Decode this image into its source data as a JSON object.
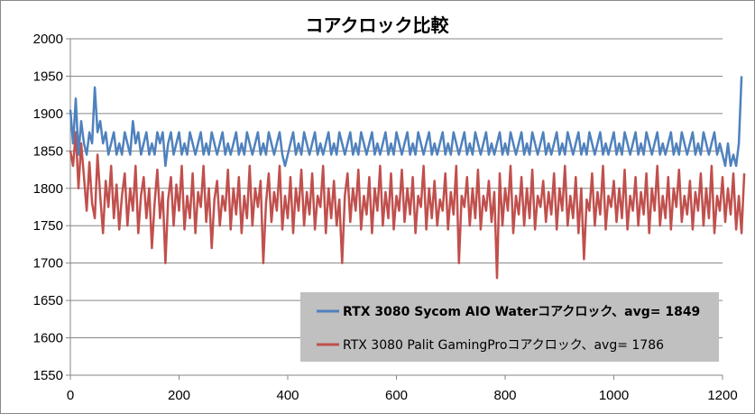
{
  "chart_data": {
    "type": "line",
    "title": "コアクロック比較",
    "xlabel": "",
    "ylabel": "",
    "xlim": [
      0,
      1200
    ],
    "ylim": [
      1550,
      2000
    ],
    "x_ticks": [
      0,
      200,
      400,
      600,
      800,
      1000,
      1200
    ],
    "y_ticks": [
      1550,
      1600,
      1650,
      1700,
      1750,
      1800,
      1850,
      1900,
      1950,
      2000
    ],
    "grid": "horizontal",
    "legend_position": "bottom-right",
    "series": [
      {
        "name": "RTX 3080 Sycom AIO Waterコアクロック、avg= 1849",
        "color": "#4f81bd",
        "avg": 1849,
        "sample_step": 5,
        "values": [
          1905,
          1860,
          1920,
          1845,
          1890,
          1860,
          1845,
          1875,
          1860,
          1935,
          1875,
          1890,
          1860,
          1875,
          1845,
          1860,
          1875,
          1845,
          1860,
          1845,
          1875,
          1860,
          1845,
          1890,
          1860,
          1875,
          1845,
          1860,
          1875,
          1845,
          1860,
          1845,
          1875,
          1860,
          1875,
          1830,
          1860,
          1875,
          1845,
          1860,
          1875,
          1845,
          1860,
          1845,
          1875,
          1860,
          1845,
          1860,
          1875,
          1845,
          1860,
          1845,
          1875,
          1860,
          1845,
          1860,
          1875,
          1845,
          1860,
          1845,
          1860,
          1875,
          1845,
          1860,
          1845,
          1875,
          1860,
          1845,
          1860,
          1875,
          1845,
          1860,
          1845,
          1875,
          1860,
          1845,
          1860,
          1875,
          1845,
          1830,
          1845,
          1860,
          1875,
          1845,
          1860,
          1845,
          1875,
          1860,
          1845,
          1860,
          1875,
          1845,
          1860,
          1845,
          1860,
          1875,
          1845,
          1860,
          1845,
          1875,
          1860,
          1845,
          1860,
          1875,
          1845,
          1860,
          1845,
          1875,
          1860,
          1845,
          1860,
          1875,
          1845,
          1860,
          1845,
          1860,
          1875,
          1845,
          1860,
          1845,
          1875,
          1860,
          1845,
          1860,
          1875,
          1845,
          1860,
          1845,
          1875,
          1860,
          1845,
          1860,
          1875,
          1845,
          1860,
          1845,
          1860,
          1875,
          1845,
          1860,
          1845,
          1875,
          1860,
          1845,
          1860,
          1875,
          1845,
          1860,
          1845,
          1875,
          1860,
          1845,
          1860,
          1875,
          1845,
          1860,
          1845,
          1860,
          1875,
          1845,
          1860,
          1845,
          1875,
          1860,
          1845,
          1860,
          1875,
          1845,
          1860,
          1845,
          1875,
          1860,
          1845,
          1860,
          1875,
          1845,
          1860,
          1845,
          1860,
          1875,
          1845,
          1860,
          1845,
          1875,
          1860,
          1845,
          1860,
          1875,
          1845,
          1860,
          1845,
          1875,
          1860,
          1845,
          1860,
          1875,
          1845,
          1860,
          1845,
          1860,
          1875,
          1845,
          1860,
          1845,
          1875,
          1860,
          1845,
          1860,
          1875,
          1845,
          1860,
          1845,
          1875,
          1860,
          1845,
          1860,
          1875,
          1845,
          1860,
          1845,
          1860,
          1875,
          1845,
          1860,
          1845,
          1875,
          1860,
          1845,
          1860,
          1875,
          1845,
          1860,
          1845,
          1875,
          1860,
          1845,
          1860,
          1875,
          1845,
          1860,
          1845,
          1830,
          1860,
          1830,
          1845,
          1830,
          1860,
          1950
        ]
      },
      {
        "name": "RTX 3080 Palit GamingProコアクロック、avg= 1786",
        "color": "#c0504d",
        "avg": 1786,
        "sample_step": 5,
        "values": [
          1850,
          1830,
          1875,
          1800,
          1860,
          1815,
          1770,
          1835,
          1780,
          1760,
          1845,
          1790,
          1740,
          1810,
          1775,
          1830,
          1760,
          1805,
          1745,
          1790,
          1820,
          1750,
          1800,
          1770,
          1830,
          1740,
          1790,
          1815,
          1760,
          1800,
          1720,
          1780,
          1825,
          1760,
          1795,
          1700,
          1785,
          1815,
          1750,
          1805,
          1770,
          1830,
          1745,
          1790,
          1760,
          1820,
          1740,
          1795,
          1775,
          1830,
          1755,
          1800,
          1720,
          1785,
          1810,
          1750,
          1790,
          1770,
          1825,
          1745,
          1800,
          1765,
          1815,
          1740,
          1790,
          1760,
          1830,
          1750,
          1800,
          1775,
          1810,
          1700,
          1780,
          1820,
          1755,
          1795,
          1770,
          1830,
          1745,
          1790,
          1760,
          1815,
          1740,
          1800,
          1770,
          1825,
          1750,
          1795,
          1765,
          1820,
          1745,
          1790,
          1775,
          1830,
          1740,
          1800,
          1760,
          1810,
          1750,
          1785,
          1700,
          1790,
          1820,
          1755,
          1800,
          1770,
          1825,
          1745,
          1790,
          1765,
          1815,
          1740,
          1800,
          1770,
          1830,
          1750,
          1795,
          1760,
          1820,
          1745,
          1790,
          1770,
          1825,
          1755,
          1800,
          1765,
          1815,
          1740,
          1790,
          1775,
          1830,
          1745,
          1800,
          1760,
          1810,
          1750,
          1785,
          1770,
          1820,
          1745,
          1795,
          1765,
          1830,
          1700,
          1790,
          1775,
          1815,
          1750,
          1800,
          1760,
          1825,
          1745,
          1790,
          1770,
          1810,
          1755,
          1795,
          1680,
          1820,
          1750,
          1800,
          1770,
          1830,
          1740,
          1790,
          1765,
          1815,
          1750,
          1800,
          1760,
          1825,
          1745,
          1790,
          1775,
          1810,
          1755,
          1795,
          1765,
          1820,
          1745,
          1800,
          1770,
          1830,
          1750,
          1790,
          1760,
          1815,
          1740,
          1800,
          1705,
          1785,
          1770,
          1820,
          1750,
          1795,
          1765,
          1830,
          1745,
          1790,
          1775,
          1810,
          1755,
          1800,
          1760,
          1825,
          1745,
          1790,
          1770,
          1815,
          1750,
          1795,
          1765,
          1820,
          1740,
          1800,
          1770,
          1830,
          1750,
          1790,
          1760,
          1815,
          1745,
          1800,
          1775,
          1825,
          1755,
          1790,
          1765,
          1810,
          1745,
          1795,
          1770,
          1820,
          1750,
          1800,
          1760,
          1830,
          1740,
          1790,
          1770,
          1815,
          1755,
          1800,
          1765,
          1820,
          1745,
          1790,
          1740,
          1820
        ]
      }
    ]
  }
}
